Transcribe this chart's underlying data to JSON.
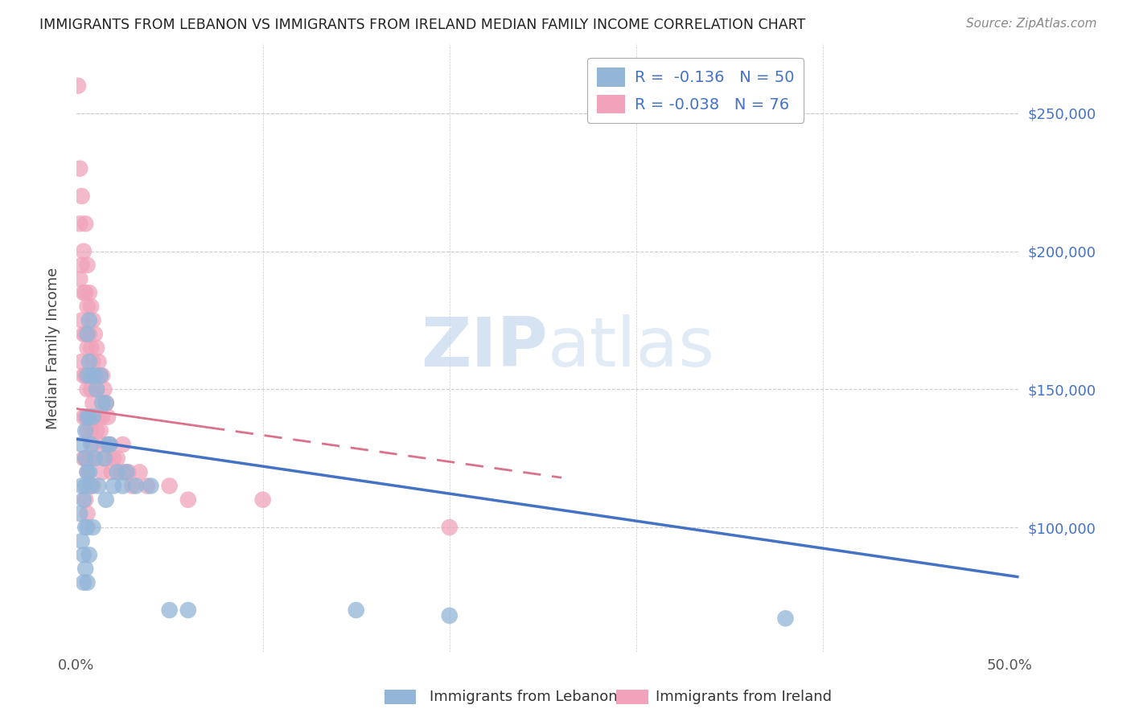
{
  "title": "IMMIGRANTS FROM LEBANON VS IMMIGRANTS FROM IRELAND MEDIAN FAMILY INCOME CORRELATION CHART",
  "source": "Source: ZipAtlas.com",
  "ylabel": "Median Family Income",
  "xlim": [
    0.0,
    0.505
  ],
  "ylim": [
    55000,
    275000
  ],
  "watermark_zip": "ZIP",
  "watermark_atlas": "atlas",
  "legend_leb_r": "-0.136",
  "legend_leb_n": "50",
  "legend_ire_r": "-0.038",
  "legend_ire_n": "76",
  "lebanon_color": "#93b5d8",
  "ireland_color": "#f0a3bb",
  "lebanon_line_color": "#4472c4",
  "ireland_line_color": "#d9728a",
  "background_color": "#ffffff",
  "grid_color": "#cccccc",
  "leb_line_x0": 0.0,
  "leb_line_x1": 0.505,
  "leb_line_y0": 132000,
  "leb_line_y1": 82000,
  "ire_line_x0": 0.0,
  "ire_line_x1": 0.26,
  "ire_line_y0": 143000,
  "ire_line_y1": 118000,
  "leb_pts_x": [
    0.002,
    0.003,
    0.003,
    0.003,
    0.004,
    0.004,
    0.004,
    0.005,
    0.005,
    0.005,
    0.005,
    0.005,
    0.006,
    0.006,
    0.006,
    0.006,
    0.006,
    0.006,
    0.007,
    0.007,
    0.007,
    0.007,
    0.007,
    0.008,
    0.008,
    0.008,
    0.009,
    0.009,
    0.01,
    0.01,
    0.011,
    0.012,
    0.013,
    0.014,
    0.015,
    0.016,
    0.016,
    0.017,
    0.018,
    0.02,
    0.022,
    0.025,
    0.027,
    0.032,
    0.04,
    0.05,
    0.06,
    0.15,
    0.2,
    0.38
  ],
  "leb_pts_y": [
    105000,
    115000,
    130000,
    95000,
    80000,
    90000,
    110000,
    125000,
    115000,
    100000,
    135000,
    85000,
    170000,
    155000,
    140000,
    120000,
    100000,
    80000,
    175000,
    160000,
    140000,
    120000,
    90000,
    155000,
    130000,
    115000,
    140000,
    100000,
    155000,
    125000,
    150000,
    115000,
    155000,
    145000,
    125000,
    145000,
    110000,
    130000,
    130000,
    115000,
    120000,
    115000,
    120000,
    115000,
    115000,
    70000,
    70000,
    70000,
    68000,
    67000
  ],
  "ire_pts_x": [
    0.001,
    0.002,
    0.002,
    0.002,
    0.003,
    0.003,
    0.003,
    0.003,
    0.004,
    0.004,
    0.004,
    0.004,
    0.004,
    0.004,
    0.005,
    0.005,
    0.005,
    0.005,
    0.005,
    0.005,
    0.005,
    0.006,
    0.006,
    0.006,
    0.006,
    0.006,
    0.006,
    0.006,
    0.007,
    0.007,
    0.007,
    0.007,
    0.007,
    0.008,
    0.008,
    0.008,
    0.008,
    0.009,
    0.009,
    0.009,
    0.009,
    0.009,
    0.01,
    0.01,
    0.01,
    0.01,
    0.011,
    0.011,
    0.011,
    0.012,
    0.012,
    0.013,
    0.013,
    0.014,
    0.014,
    0.014,
    0.015,
    0.015,
    0.016,
    0.016,
    0.017,
    0.018,
    0.019,
    0.02,
    0.022,
    0.024,
    0.025,
    0.026,
    0.028,
    0.03,
    0.034,
    0.038,
    0.05,
    0.06,
    0.1,
    0.2
  ],
  "ire_pts_y": [
    260000,
    230000,
    210000,
    190000,
    220000,
    195000,
    175000,
    160000,
    200000,
    185000,
    170000,
    155000,
    140000,
    125000,
    210000,
    185000,
    170000,
    155000,
    140000,
    125000,
    110000,
    195000,
    180000,
    165000,
    150000,
    135000,
    120000,
    105000,
    185000,
    170000,
    155000,
    140000,
    125000,
    180000,
    165000,
    150000,
    135000,
    175000,
    160000,
    145000,
    130000,
    115000,
    170000,
    155000,
    140000,
    125000,
    165000,
    150000,
    135000,
    160000,
    140000,
    155000,
    135000,
    155000,
    140000,
    120000,
    150000,
    130000,
    145000,
    125000,
    140000,
    130000,
    120000,
    125000,
    125000,
    120000,
    130000,
    120000,
    120000,
    115000,
    120000,
    115000,
    115000,
    110000,
    110000,
    100000
  ]
}
